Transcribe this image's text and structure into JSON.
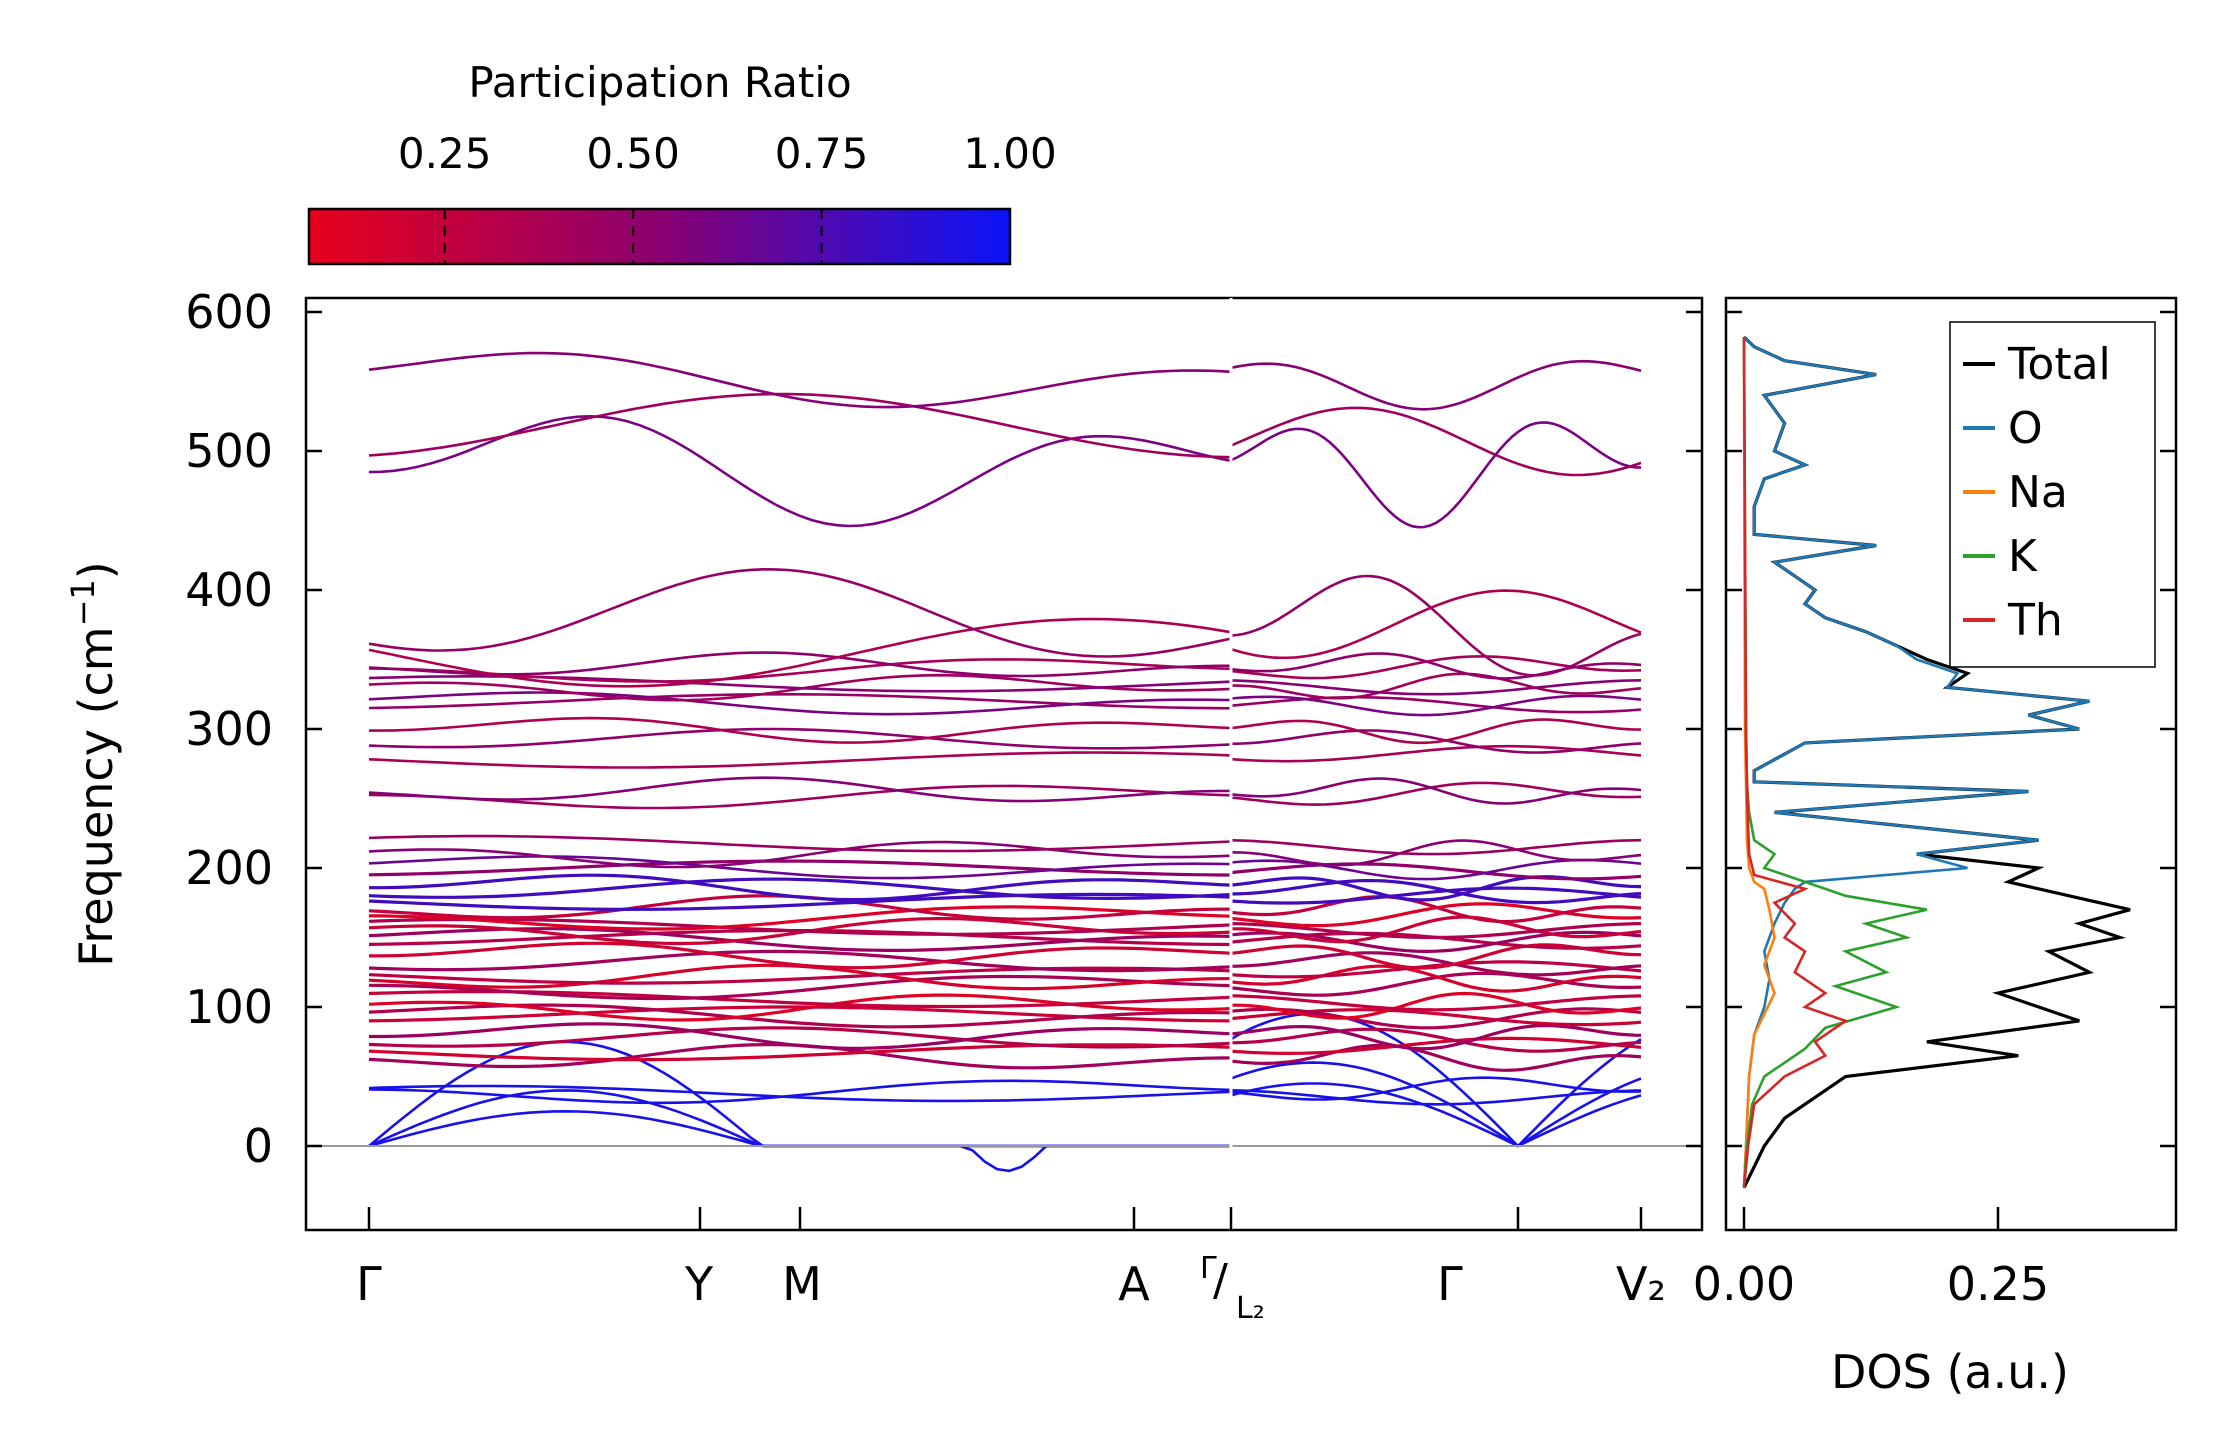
{
  "colors": {
    "axis": "#000000",
    "zero_line": "#999999",
    "cmap_low": "#e8001c",
    "cmap_mid": "#8a0070",
    "cmap_high": "#0a14f8",
    "Total": "#000000",
    "O": "#1f77b4",
    "Na": "#ff7f0e",
    "K": "#2ca02c",
    "Th": "#d62728"
  },
  "chart_data": [
    {
      "type": "line",
      "name": "phonon band structure",
      "ylabel": "Frequency (cm",
      "ylabel_sup": "−1",
      "ylabel_end": ")",
      "ylim": [
        -60,
        610
      ],
      "yticks": [
        0,
        100,
        200,
        300,
        400,
        500,
        600
      ],
      "x_segments": [
        {
          "from": 0,
          "to": 1,
          "labels": [
            "Γ",
            "Y",
            "M",
            "A",
            "Γ"
          ],
          "positions": [
            0,
            0.384,
            0.5,
            0.887,
            1.0
          ]
        },
        {
          "from": 1,
          "to": 2,
          "labels": [
            "L₂",
            "Γ",
            "V₂"
          ],
          "positions": [
            0,
            0.7,
            1.0
          ]
        }
      ],
      "xtick_labels": [
        "Γ",
        "Y",
        "M",
        "A",
        "Γ/L₂",
        "Γ",
        "V₂"
      ],
      "seg_split_label_left": "Γ",
      "seg_split_label_right": "L₂",
      "seg_split_slash": "/",
      "band_frequencies_at_gamma": [
        0,
        0,
        0,
        40,
        40,
        63,
        70,
        75,
        80,
        90,
        95,
        100,
        108,
        115,
        120,
        125,
        130,
        138,
        145,
        150,
        155,
        160,
        165,
        170,
        178,
        182,
        187,
        195,
        202,
        210,
        220,
        252,
        255,
        280,
        290,
        300,
        315,
        320,
        330,
        335,
        343,
        345,
        365,
        370,
        490,
        496,
        555
      ],
      "negative_dip": {
        "x_fraction": 0.74,
        "min_frequency": -18
      },
      "colorbar": {
        "title": "Participation Ratio",
        "ticks": [
          0.25,
          0.5,
          0.75,
          1.0
        ],
        "tick_labels": [
          "0.25",
          "0.50",
          "0.75",
          "1.00"
        ],
        "range": [
          0.07,
          1.0
        ]
      }
    },
    {
      "type": "line",
      "name": "phonon DOS",
      "xlabel": "DOS (a.u.)",
      "xticks": [
        0.0,
        0.25
      ],
      "xtick_labels": [
        "0.00",
        "0.25"
      ],
      "xlim": [
        -0.01,
        0.42
      ],
      "ylim": [
        -60,
        610
      ],
      "legend": [
        "Total",
        "O",
        "Na",
        "K",
        "Th"
      ],
      "legend_position": "top-right",
      "series": [
        {
          "name": "Total",
          "freq": [
            -30,
            0,
            20,
            50,
            65,
            75,
            90,
            110,
            125,
            140,
            150,
            160,
            170,
            180,
            190,
            200,
            210,
            220,
            240,
            255,
            262,
            270,
            290,
            300,
            310,
            320,
            330,
            340,
            350,
            360,
            370,
            380,
            390,
            400,
            410,
            420,
            432,
            440,
            460,
            480,
            490,
            500,
            520,
            540,
            555,
            565,
            575,
            582
          ],
          "dos": [
            0.0,
            0.02,
            0.04,
            0.1,
            0.27,
            0.18,
            0.33,
            0.25,
            0.34,
            0.3,
            0.37,
            0.33,
            0.38,
            0.32,
            0.26,
            0.29,
            0.17,
            0.29,
            0.03,
            0.28,
            0.01,
            0.01,
            0.06,
            0.33,
            0.28,
            0.34,
            0.2,
            0.22,
            0.18,
            0.15,
            0.12,
            0.08,
            0.06,
            0.07,
            0.05,
            0.03,
            0.13,
            0.01,
            0.01,
            0.02,
            0.06,
            0.03,
            0.04,
            0.02,
            0.13,
            0.04,
            0.01,
            0.0
          ]
        },
        {
          "name": "O",
          "freq": [
            -30,
            0,
            50,
            80,
            100,
            120,
            140,
            160,
            175,
            185,
            190,
            200,
            210,
            220,
            240,
            255,
            262,
            270,
            290,
            300,
            310,
            320,
            330,
            340,
            350,
            360,
            370,
            380,
            390,
            400,
            410,
            420,
            432,
            440,
            460,
            480,
            490,
            500,
            520,
            540,
            555,
            565,
            575,
            582
          ],
          "dos": [
            0.0,
            0.002,
            0.005,
            0.01,
            0.02,
            0.025,
            0.02,
            0.03,
            0.04,
            0.05,
            0.06,
            0.22,
            0.17,
            0.29,
            0.03,
            0.28,
            0.01,
            0.01,
            0.06,
            0.33,
            0.28,
            0.34,
            0.2,
            0.21,
            0.17,
            0.15,
            0.12,
            0.08,
            0.06,
            0.07,
            0.05,
            0.03,
            0.13,
            0.01,
            0.01,
            0.02,
            0.06,
            0.03,
            0.04,
            0.02,
            0.13,
            0.04,
            0.01,
            0.0
          ]
        },
        {
          "name": "Na",
          "freq": [
            -30,
            0,
            50,
            80,
            95,
            110,
            130,
            150,
            170,
            185,
            190,
            200,
            220,
            260,
            300,
            582
          ],
          "dos": [
            0.0,
            0.002,
            0.005,
            0.01,
            0.02,
            0.03,
            0.02,
            0.03,
            0.025,
            0.02,
            0.01,
            0.005,
            0.003,
            0.002,
            0.001,
            0.0
          ]
        },
        {
          "name": "K",
          "freq": [
            -30,
            0,
            30,
            50,
            70,
            85,
            100,
            115,
            125,
            140,
            150,
            160,
            170,
            180,
            190,
            200,
            210,
            220,
            240,
            260,
            300,
            582
          ],
          "dos": [
            0.0,
            0.003,
            0.008,
            0.02,
            0.06,
            0.08,
            0.15,
            0.09,
            0.14,
            0.1,
            0.16,
            0.12,
            0.18,
            0.1,
            0.06,
            0.02,
            0.03,
            0.01,
            0.005,
            0.003,
            0.002,
            0.0
          ]
        },
        {
          "name": "Th",
          "freq": [
            -30,
            0,
            30,
            50,
            65,
            75,
            90,
            100,
            110,
            125,
            140,
            150,
            160,
            175,
            185,
            195,
            210,
            230,
            260,
            300,
            582
          ],
          "dos": [
            0.0,
            0.004,
            0.01,
            0.04,
            0.08,
            0.07,
            0.1,
            0.06,
            0.08,
            0.05,
            0.06,
            0.04,
            0.05,
            0.03,
            0.06,
            0.01,
            0.005,
            0.004,
            0.003,
            0.002,
            0.0
          ]
        }
      ]
    }
  ]
}
